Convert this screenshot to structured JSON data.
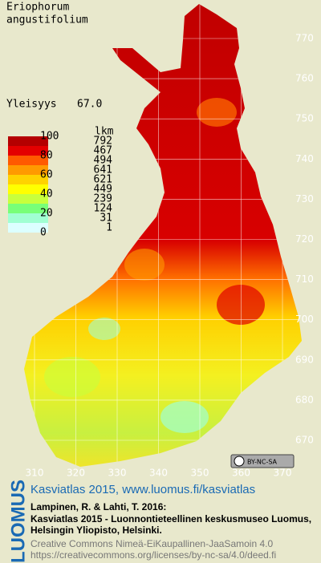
{
  "species": [
    "Eriophorum",
    "angustifolium"
  ],
  "frequency": {
    "label": "Yleisyys",
    "value": "67.0"
  },
  "legend": {
    "scale_labels": [
      "100",
      "80",
      "60",
      "40",
      "20",
      "0"
    ],
    "count_header": "lkm",
    "classes": [
      {
        "color": "#b40000",
        "count": "792"
      },
      {
        "color": "#e40000",
        "count": "467"
      },
      {
        "color": "#ff5a00",
        "count": "494"
      },
      {
        "color": "#ff9a00",
        "count": "641"
      },
      {
        "color": "#ffd200",
        "count": "621"
      },
      {
        "color": "#ffff00",
        "count": "449"
      },
      {
        "color": "#c8ff3c",
        "count": "239"
      },
      {
        "color": "#78ff78",
        "count": "124"
      },
      {
        "color": "#a0ffd2",
        "count": "31"
      },
      {
        "color": "#dcffff",
        "count": "1"
      }
    ]
  },
  "grid": {
    "northing": [
      770,
      760,
      750,
      740,
      730,
      720,
      710,
      700,
      690,
      680,
      670
    ],
    "easting": [
      310,
      320,
      330,
      340,
      350,
      360,
      370
    ]
  },
  "license_badge": "BY-NC-SA",
  "footer": {
    "brand": "LUOMUS",
    "link": "Kasviatlas 2015, www.luomus.fi/kasviatlas",
    "citation": [
      "Lampinen, R. & Lahti, T. 2016:",
      "Kasviatlas 2015 - Luonnontieteellinen keskusmuseo Luomus,",
      "Helsingin Yliopisto, Helsinki."
    ],
    "license": [
      "Creative Commons Nimeä-EiKaupallinen-JaaSamoin 4.0",
      "https://creativecommons.org/licenses/by-nc-sa/4.0/deed.fi"
    ]
  }
}
